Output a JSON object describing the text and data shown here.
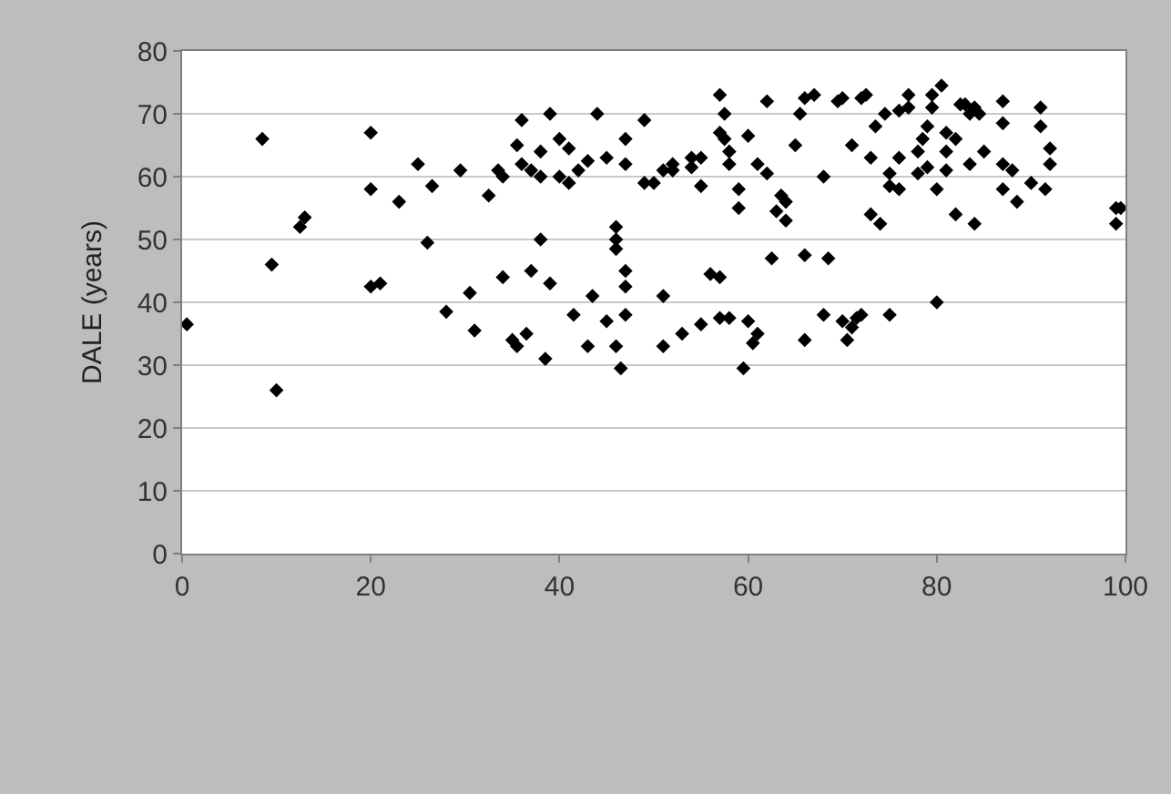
{
  "chart_data": {
    "type": "scatter",
    "ylabel": "DALE (years)",
    "xlim": [
      0,
      100
    ],
    "xticks": [
      0,
      20,
      40,
      60,
      80,
      100
    ],
    "ylim": [
      0,
      80
    ],
    "yticks": [
      0,
      10,
      20,
      30,
      40,
      50,
      60,
      70,
      80
    ],
    "grid": "y",
    "marker": "diamond",
    "series": [
      {
        "color": "#000000",
        "x": [
          0.5,
          8.5,
          9.5,
          10,
          12.5,
          13,
          20,
          20,
          20,
          21,
          23,
          25,
          26,
          26.5,
          28,
          29.5,
          30.5,
          31,
          32.5,
          33.5,
          34,
          34,
          35,
          35.5,
          35.5,
          36,
          36,
          36.5,
          37,
          37,
          38,
          38,
          38,
          38.5,
          39,
          39,
          40,
          40,
          41,
          41,
          41.5,
          42,
          43,
          43,
          43.5,
          44,
          45,
          45,
          46,
          46,
          46,
          46,
          46.5,
          47,
          47,
          47,
          47,
          47,
          49,
          49,
          50,
          51,
          51,
          51,
          52,
          52,
          53,
          54,
          54,
          55,
          55,
          55,
          56,
          57,
          57,
          57,
          57,
          57.5,
          57.5,
          58,
          58,
          58,
          59,
          59,
          59.5,
          60,
          60,
          60.5,
          61,
          61,
          62,
          62,
          62.5,
          63,
          63.5,
          64,
          64,
          65,
          65.5,
          66,
          66,
          66,
          67,
          68,
          68,
          68.5,
          69.5,
          70,
          70,
          70.5,
          71,
          71,
          71.5,
          72,
          72,
          72.5,
          73,
          73,
          73.5,
          74,
          74.5,
          75,
          75,
          75,
          76,
          76,
          76,
          77,
          77,
          78,
          78,
          78.5,
          79,
          79,
          79.5,
          79.5,
          80,
          80,
          80.5,
          81,
          81,
          81,
          82,
          82,
          82.5,
          83,
          83.5,
          83.5,
          84,
          84,
          84.5,
          85,
          87,
          87,
          87,
          87,
          88,
          88.5,
          90,
          91,
          91,
          92,
          92,
          91.5,
          99,
          99,
          99.5
        ],
        "values": [
          36.5,
          66,
          46,
          26,
          52,
          53.5,
          67,
          58,
          42.5,
          43,
          56,
          62,
          49.5,
          58.5,
          38.5,
          61,
          41.5,
          35.5,
          57,
          61,
          60,
          44,
          34,
          33,
          65,
          62,
          69,
          35,
          45,
          61,
          60,
          50,
          64,
          31,
          70,
          43,
          60,
          66,
          59,
          64.5,
          38,
          61,
          62.5,
          33,
          41,
          70,
          63,
          37,
          48.5,
          33,
          52,
          50,
          29.5,
          45,
          42.5,
          38,
          66,
          62,
          59,
          69,
          59,
          33,
          61,
          41,
          61,
          62,
          35,
          61.5,
          63,
          58.5,
          36.5,
          63,
          44.5,
          37.5,
          44,
          73,
          67,
          66,
          70,
          64,
          62,
          37.5,
          58,
          55,
          29.5,
          37,
          66.5,
          33.5,
          62,
          35,
          72,
          60.5,
          47,
          54.5,
          57,
          56,
          53,
          65,
          70,
          72.5,
          34,
          47.5,
          73,
          60,
          38,
          47,
          72,
          72.5,
          37,
          34,
          36,
          65,
          37.5,
          38,
          72.5,
          73,
          54,
          63,
          68,
          52.5,
          70,
          60.5,
          38,
          58.5,
          58,
          63,
          70.5,
          73,
          71,
          60.5,
          64,
          66,
          68,
          61.5,
          73,
          71,
          40,
          58,
          74.5,
          64,
          67,
          61,
          66,
          54,
          71.5,
          71.5,
          70,
          62,
          71,
          52.5,
          70,
          64,
          72,
          68.5,
          62,
          58,
          61,
          56,
          59,
          71,
          68,
          62,
          64.5,
          58,
          55,
          52.5,
          55
        ]
      }
    ]
  }
}
